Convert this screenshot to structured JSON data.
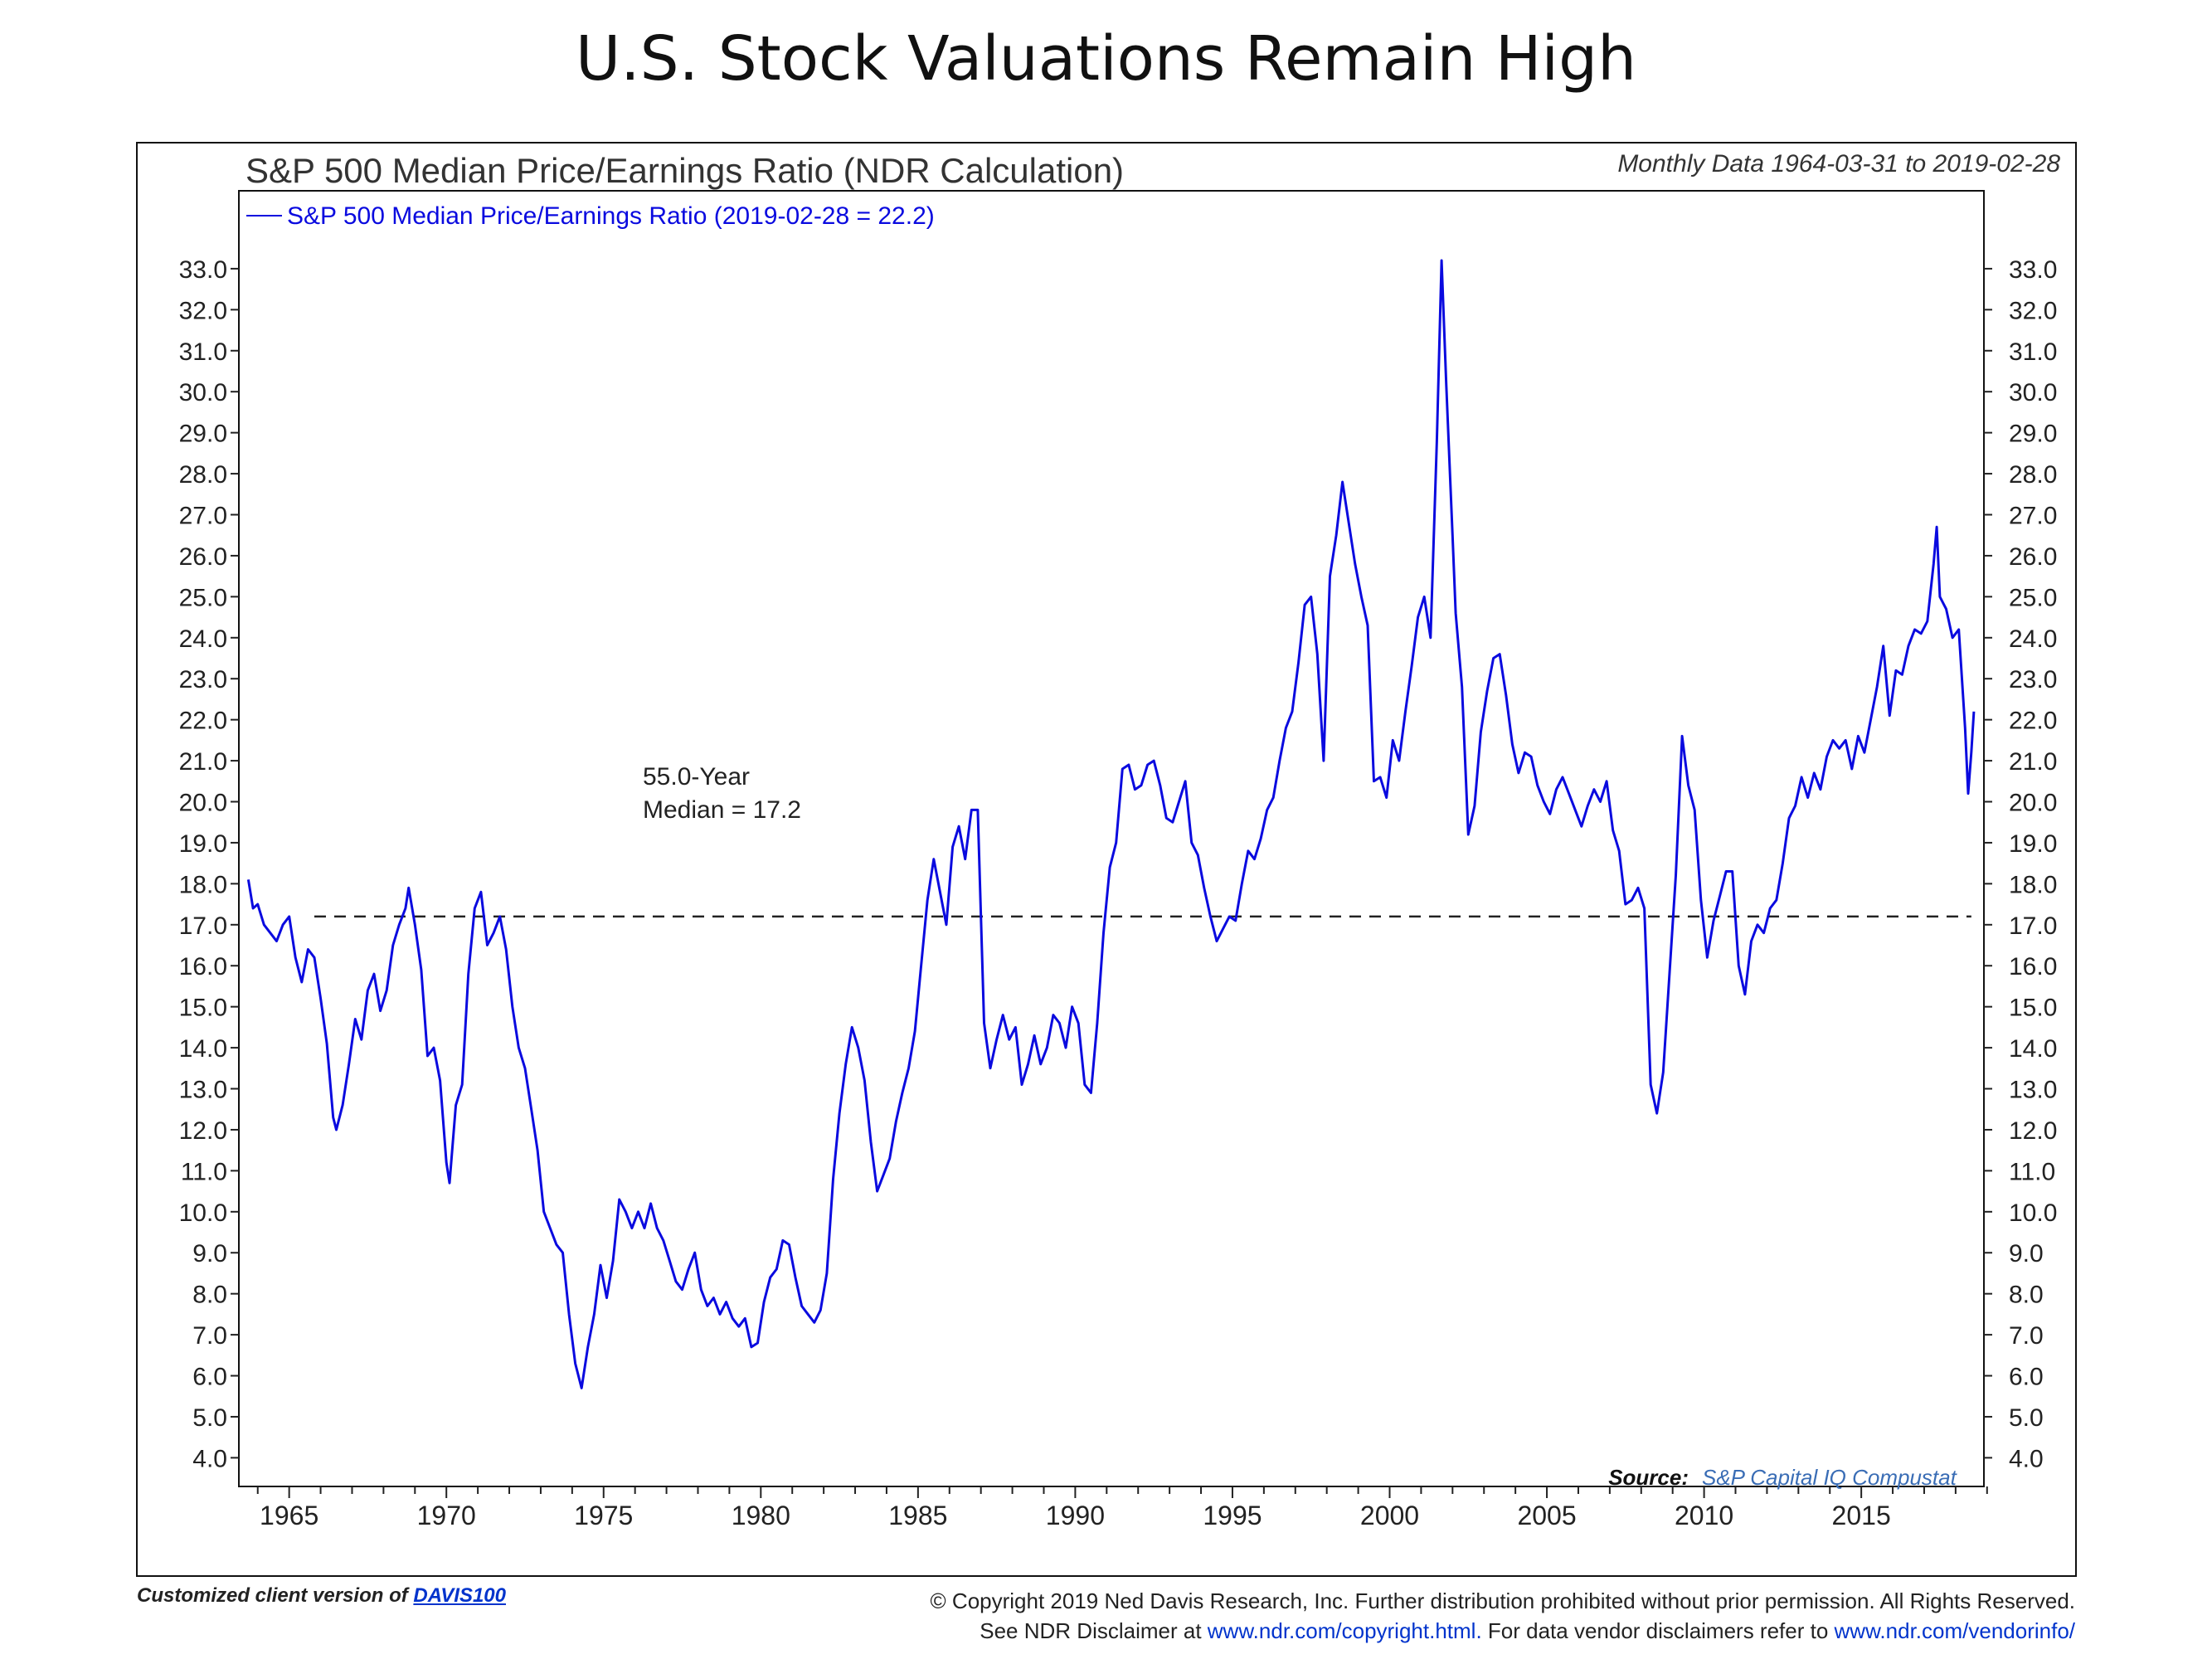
{
  "page": {
    "title": "U.S. Stock Valuations Remain High"
  },
  "chart_header": {
    "title": "S&P 500 Median Price/Earnings Ratio (NDR Calculation)",
    "data_range": "Monthly Data 1964-03-31 to 2019-02-28",
    "legend_label": "S&P 500 Median Price/Earnings Ratio (2019-02-28 = 22.2)"
  },
  "annotation": {
    "line1": "55.0-Year",
    "line2": "Median = 17.2"
  },
  "source": {
    "label": "Source:",
    "value": "S&P Capital IQ Compustat"
  },
  "footer": {
    "left_prefix": "Customized client version of",
    "left_link": "DAVIS100",
    "copyright": "© Copyright 2019 Ned Davis Research, Inc. Further distribution prohibited without prior permission. All Rights Reserved.",
    "disclaimer_prefix": "See NDR Disclaimer at",
    "disclaimer_link1": "www.ndr.com/copyright.html.",
    "disclaimer_mid": "For data vendor disclaimers refer to",
    "disclaimer_link2": "www.ndr.com/vendorinfo/"
  },
  "colors": {
    "series": "#0a0adf",
    "axis": "#222222",
    "median": "#222222",
    "source_link": "#3a6db5"
  },
  "chart_data": {
    "type": "line",
    "title": "S&P 500 Median Price/Earnings Ratio (NDR Calculation)",
    "xlabel": "",
    "ylabel": "",
    "xlim": [
      1963.9,
      2019.4
    ],
    "ylim": [
      3.3,
      34.9
    ],
    "x_ticks": [
      1965,
      1970,
      1975,
      1980,
      1985,
      1990,
      1995,
      2000,
      2005,
      2010,
      2015
    ],
    "y_ticks": [
      "4.0",
      "5.0",
      "6.0",
      "7.0",
      "8.0",
      "9.0",
      "10.0",
      "11.0",
      "12.0",
      "13.0",
      "14.0",
      "15.0",
      "16.0",
      "17.0",
      "18.0",
      "19.0",
      "20.0",
      "21.0",
      "22.0",
      "23.0",
      "24.0",
      "25.0",
      "26.0",
      "27.0",
      "28.0",
      "29.0",
      "30.0",
      "31.0",
      "32.0",
      "33.0"
    ],
    "grid": false,
    "legend_position": "top-left",
    "median": {
      "value": 17.2,
      "x_start": 1966.3,
      "x_end": 2019.0
    },
    "series": [
      {
        "name": "S&P 500 Median Price/Earnings Ratio (2019-02-28 = 22.2)",
        "points": [
          [
            1964.2,
            18.1
          ],
          [
            1964.35,
            17.4
          ],
          [
            1964.5,
            17.5
          ],
          [
            1964.7,
            17.0
          ],
          [
            1964.9,
            16.8
          ],
          [
            1965.1,
            16.6
          ],
          [
            1965.3,
            17.0
          ],
          [
            1965.5,
            17.2
          ],
          [
            1965.7,
            16.2
          ],
          [
            1965.9,
            15.6
          ],
          [
            1966.1,
            16.4
          ],
          [
            1966.3,
            16.2
          ],
          [
            1966.5,
            15.2
          ],
          [
            1966.7,
            14.1
          ],
          [
            1966.9,
            12.3
          ],
          [
            1967.0,
            12.0
          ],
          [
            1967.2,
            12.6
          ],
          [
            1967.4,
            13.6
          ],
          [
            1967.6,
            14.7
          ],
          [
            1967.8,
            14.2
          ],
          [
            1968.0,
            15.4
          ],
          [
            1968.2,
            15.8
          ],
          [
            1968.4,
            14.9
          ],
          [
            1968.6,
            15.4
          ],
          [
            1968.8,
            16.5
          ],
          [
            1969.0,
            17.0
          ],
          [
            1969.2,
            17.4
          ],
          [
            1969.3,
            17.9
          ],
          [
            1969.5,
            17.0
          ],
          [
            1969.7,
            15.9
          ],
          [
            1969.9,
            13.8
          ],
          [
            1970.1,
            14.0
          ],
          [
            1970.3,
            13.2
          ],
          [
            1970.5,
            11.2
          ],
          [
            1970.6,
            10.7
          ],
          [
            1970.8,
            12.6
          ],
          [
            1971.0,
            13.1
          ],
          [
            1971.2,
            15.8
          ],
          [
            1971.4,
            17.4
          ],
          [
            1971.6,
            17.8
          ],
          [
            1971.8,
            16.5
          ],
          [
            1972.0,
            16.8
          ],
          [
            1972.2,
            17.2
          ],
          [
            1972.4,
            16.4
          ],
          [
            1972.6,
            15.0
          ],
          [
            1972.8,
            14.0
          ],
          [
            1973.0,
            13.5
          ],
          [
            1973.2,
            12.5
          ],
          [
            1973.4,
            11.5
          ],
          [
            1973.6,
            10.0
          ],
          [
            1973.8,
            9.6
          ],
          [
            1974.0,
            9.2
          ],
          [
            1974.2,
            9.0
          ],
          [
            1974.4,
            7.5
          ],
          [
            1974.6,
            6.3
          ],
          [
            1974.8,
            5.7
          ],
          [
            1975.0,
            6.7
          ],
          [
            1975.2,
            7.5
          ],
          [
            1975.4,
            8.7
          ],
          [
            1975.6,
            7.9
          ],
          [
            1975.8,
            8.8
          ],
          [
            1976.0,
            10.3
          ],
          [
            1976.2,
            10.0
          ],
          [
            1976.4,
            9.6
          ],
          [
            1976.6,
            10.0
          ],
          [
            1976.8,
            9.6
          ],
          [
            1977.0,
            10.2
          ],
          [
            1977.2,
            9.6
          ],
          [
            1977.4,
            9.3
          ],
          [
            1977.6,
            8.8
          ],
          [
            1977.8,
            8.3
          ],
          [
            1978.0,
            8.1
          ],
          [
            1978.2,
            8.6
          ],
          [
            1978.4,
            9.0
          ],
          [
            1978.6,
            8.1
          ],
          [
            1978.8,
            7.7
          ],
          [
            1979.0,
            7.9
          ],
          [
            1979.2,
            7.5
          ],
          [
            1979.4,
            7.8
          ],
          [
            1979.6,
            7.4
          ],
          [
            1979.8,
            7.2
          ],
          [
            1980.0,
            7.4
          ],
          [
            1980.2,
            6.7
          ],
          [
            1980.4,
            6.8
          ],
          [
            1980.6,
            7.8
          ],
          [
            1980.8,
            8.4
          ],
          [
            1981.0,
            8.6
          ],
          [
            1981.2,
            9.3
          ],
          [
            1981.4,
            9.2
          ],
          [
            1981.6,
            8.4
          ],
          [
            1981.8,
            7.7
          ],
          [
            1982.0,
            7.5
          ],
          [
            1982.2,
            7.3
          ],
          [
            1982.4,
            7.6
          ],
          [
            1982.6,
            8.5
          ],
          [
            1982.8,
            10.8
          ],
          [
            1983.0,
            12.4
          ],
          [
            1983.2,
            13.6
          ],
          [
            1983.4,
            14.5
          ],
          [
            1983.6,
            14.0
          ],
          [
            1983.8,
            13.2
          ],
          [
            1984.0,
            11.7
          ],
          [
            1984.2,
            10.5
          ],
          [
            1984.4,
            10.9
          ],
          [
            1984.6,
            11.3
          ],
          [
            1984.8,
            12.2
          ],
          [
            1985.0,
            12.9
          ],
          [
            1985.2,
            13.5
          ],
          [
            1985.4,
            14.4
          ],
          [
            1985.6,
            16.0
          ],
          [
            1985.8,
            17.6
          ],
          [
            1986.0,
            18.6
          ],
          [
            1986.2,
            17.8
          ],
          [
            1986.4,
            17.0
          ],
          [
            1986.6,
            18.9
          ],
          [
            1986.8,
            19.4
          ],
          [
            1987.0,
            18.6
          ],
          [
            1987.2,
            19.8
          ],
          [
            1987.4,
            19.8
          ],
          [
            1987.6,
            14.6
          ],
          [
            1987.8,
            13.5
          ],
          [
            1988.0,
            14.2
          ],
          [
            1988.2,
            14.8
          ],
          [
            1988.4,
            14.2
          ],
          [
            1988.6,
            14.5
          ],
          [
            1988.8,
            13.1
          ],
          [
            1989.0,
            13.6
          ],
          [
            1989.2,
            14.3
          ],
          [
            1989.4,
            13.6
          ],
          [
            1989.6,
            14.0
          ],
          [
            1989.8,
            14.8
          ],
          [
            1990.0,
            14.6
          ],
          [
            1990.2,
            14.0
          ],
          [
            1990.4,
            15.0
          ],
          [
            1990.6,
            14.6
          ],
          [
            1990.8,
            13.1
          ],
          [
            1991.0,
            12.9
          ],
          [
            1991.2,
            14.6
          ],
          [
            1991.4,
            16.8
          ],
          [
            1991.6,
            18.4
          ],
          [
            1991.8,
            19.0
          ],
          [
            1992.0,
            20.8
          ],
          [
            1992.2,
            20.9
          ],
          [
            1992.4,
            20.3
          ],
          [
            1992.6,
            20.4
          ],
          [
            1992.8,
            20.9
          ],
          [
            1993.0,
            21.0
          ],
          [
            1993.2,
            20.4
          ],
          [
            1993.4,
            19.6
          ],
          [
            1993.6,
            19.5
          ],
          [
            1993.8,
            20.0
          ],
          [
            1994.0,
            20.5
          ],
          [
            1994.2,
            19.0
          ],
          [
            1994.4,
            18.7
          ],
          [
            1994.6,
            17.9
          ],
          [
            1994.8,
            17.2
          ],
          [
            1995.0,
            16.6
          ],
          [
            1995.2,
            16.9
          ],
          [
            1995.4,
            17.2
          ],
          [
            1995.6,
            17.1
          ],
          [
            1995.8,
            18.0
          ],
          [
            1996.0,
            18.8
          ],
          [
            1996.2,
            18.6
          ],
          [
            1996.4,
            19.1
          ],
          [
            1996.6,
            19.8
          ],
          [
            1996.8,
            20.1
          ],
          [
            1997.0,
            21.0
          ],
          [
            1997.2,
            21.8
          ],
          [
            1997.4,
            22.2
          ],
          [
            1997.6,
            23.4
          ],
          [
            1997.8,
            24.8
          ],
          [
            1998.0,
            25.0
          ],
          [
            1998.2,
            23.6
          ],
          [
            1998.4,
            21.0
          ],
          [
            1998.6,
            25.5
          ],
          [
            1998.8,
            26.5
          ],
          [
            1999.0,
            27.8
          ],
          [
            1999.2,
            26.8
          ],
          [
            1999.4,
            25.8
          ],
          [
            1999.6,
            25.0
          ],
          [
            1999.8,
            24.3
          ],
          [
            2000.0,
            20.5
          ],
          [
            2000.2,
            20.6
          ],
          [
            2000.4,
            20.1
          ],
          [
            2000.6,
            21.5
          ],
          [
            2000.8,
            21.0
          ],
          [
            2001.0,
            22.2
          ],
          [
            2001.2,
            23.3
          ],
          [
            2001.4,
            24.5
          ],
          [
            2001.6,
            25.0
          ],
          [
            2001.8,
            24.0
          ],
          [
            2002.0,
            28.8
          ],
          [
            2002.15,
            33.2
          ],
          [
            2002.3,
            30.2
          ],
          [
            2002.5,
            26.5
          ],
          [
            2002.6,
            24.6
          ],
          [
            2002.8,
            22.8
          ],
          [
            2003.0,
            19.2
          ],
          [
            2003.2,
            19.9
          ],
          [
            2003.4,
            21.7
          ],
          [
            2003.6,
            22.7
          ],
          [
            2003.8,
            23.5
          ],
          [
            2004.0,
            23.6
          ],
          [
            2004.2,
            22.6
          ],
          [
            2004.4,
            21.4
          ],
          [
            2004.6,
            20.7
          ],
          [
            2004.8,
            21.2
          ],
          [
            2005.0,
            21.1
          ],
          [
            2005.2,
            20.4
          ],
          [
            2005.4,
            20.0
          ],
          [
            2005.6,
            19.7
          ],
          [
            2005.8,
            20.3
          ],
          [
            2006.0,
            20.6
          ],
          [
            2006.2,
            20.2
          ],
          [
            2006.4,
            19.8
          ],
          [
            2006.6,
            19.4
          ],
          [
            2006.8,
            19.9
          ],
          [
            2007.0,
            20.3
          ],
          [
            2007.2,
            20.0
          ],
          [
            2007.4,
            20.5
          ],
          [
            2007.6,
            19.3
          ],
          [
            2007.8,
            18.8
          ],
          [
            2008.0,
            17.5
          ],
          [
            2008.2,
            17.6
          ],
          [
            2008.4,
            17.9
          ],
          [
            2008.6,
            17.4
          ],
          [
            2008.8,
            13.1
          ],
          [
            2009.0,
            12.4
          ],
          [
            2009.2,
            13.4
          ],
          [
            2009.4,
            15.8
          ],
          [
            2009.6,
            18.2
          ],
          [
            2009.8,
            21.6
          ],
          [
            2010.0,
            20.4
          ],
          [
            2010.2,
            19.8
          ],
          [
            2010.4,
            17.6
          ],
          [
            2010.6,
            16.2
          ],
          [
            2010.8,
            17.1
          ],
          [
            2011.0,
            17.7
          ],
          [
            2011.2,
            18.3
          ],
          [
            2011.4,
            18.3
          ],
          [
            2011.6,
            16.0
          ],
          [
            2011.8,
            15.3
          ],
          [
            2012.0,
            16.6
          ],
          [
            2012.2,
            17.0
          ],
          [
            2012.4,
            16.8
          ],
          [
            2012.6,
            17.4
          ],
          [
            2012.8,
            17.6
          ],
          [
            2013.0,
            18.5
          ],
          [
            2013.2,
            19.6
          ],
          [
            2013.4,
            19.9
          ],
          [
            2013.6,
            20.6
          ],
          [
            2013.8,
            20.1
          ],
          [
            2014.0,
            20.7
          ],
          [
            2014.2,
            20.3
          ],
          [
            2014.4,
            21.1
          ],
          [
            2014.6,
            21.5
          ],
          [
            2014.8,
            21.3
          ],
          [
            2015.0,
            21.5
          ],
          [
            2015.2,
            20.8
          ],
          [
            2015.4,
            21.6
          ],
          [
            2015.6,
            21.2
          ],
          [
            2015.8,
            22.0
          ],
          [
            2016.0,
            22.8
          ],
          [
            2016.2,
            23.8
          ],
          [
            2016.4,
            22.1
          ],
          [
            2016.6,
            23.2
          ],
          [
            2016.8,
            23.1
          ],
          [
            2017.0,
            23.8
          ],
          [
            2017.2,
            24.2
          ],
          [
            2017.4,
            24.1
          ],
          [
            2017.6,
            24.4
          ],
          [
            2017.8,
            25.8
          ],
          [
            2017.9,
            26.7
          ],
          [
            2018.0,
            25.0
          ],
          [
            2018.2,
            24.7
          ],
          [
            2018.4,
            24.0
          ],
          [
            2018.6,
            24.2
          ],
          [
            2018.8,
            21.8
          ],
          [
            2018.9,
            20.2
          ],
          [
            2019.0,
            21.2
          ],
          [
            2019.08,
            22.2
          ]
        ]
      }
    ]
  }
}
